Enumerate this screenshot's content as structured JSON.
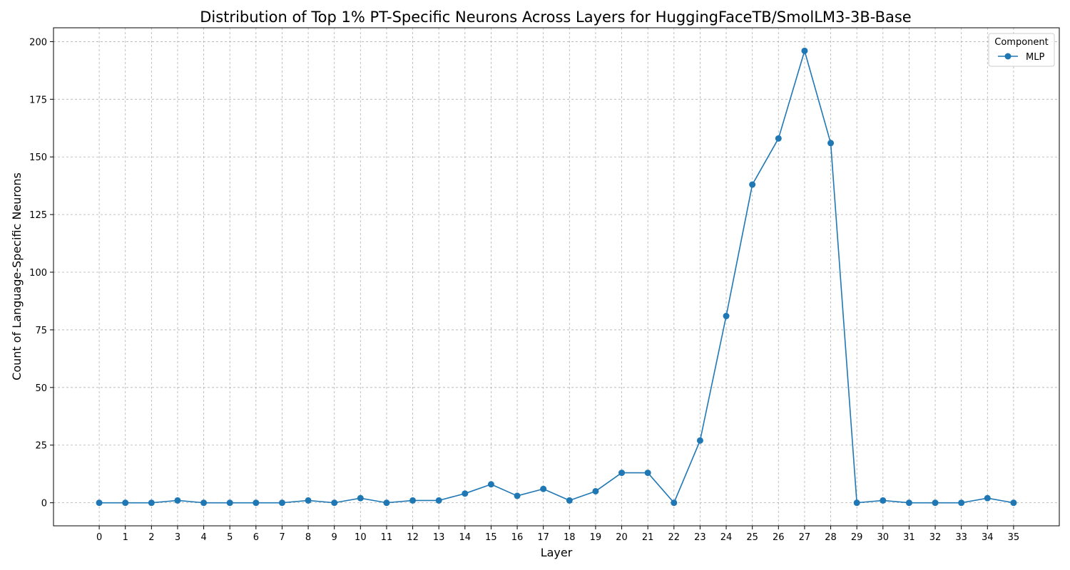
{
  "chart_data": {
    "type": "line",
    "title": "Distribution of Top 1% PT-Specific Neurons Across Layers for HuggingFaceTB/SmolLM3-3B-Base",
    "xlabel": "Layer",
    "ylabel": "Count of Language-Specific Neurons",
    "x": [
      0,
      1,
      2,
      3,
      4,
      5,
      6,
      7,
      8,
      9,
      10,
      11,
      12,
      13,
      14,
      15,
      16,
      17,
      18,
      19,
      20,
      21,
      22,
      23,
      24,
      25,
      26,
      27,
      28,
      29,
      30,
      31,
      32,
      33,
      34,
      35
    ],
    "xticks": [
      "0",
      "1",
      "2",
      "3",
      "4",
      "5",
      "6",
      "7",
      "8",
      "9",
      "10",
      "11",
      "12",
      "13",
      "14",
      "15",
      "16",
      "17",
      "18",
      "19",
      "20",
      "21",
      "22",
      "23",
      "24",
      "25",
      "26",
      "27",
      "28",
      "29",
      "30",
      "31",
      "32",
      "33",
      "34",
      "35"
    ],
    "xlim": [
      -1.75,
      36.75
    ],
    "ylim": [
      -10,
      206
    ],
    "yticks": [
      0,
      25,
      50,
      75,
      100,
      125,
      150,
      175,
      200
    ],
    "ytick_labels": [
      "0",
      "25",
      "50",
      "75",
      "100",
      "125",
      "150",
      "175",
      "200"
    ],
    "grid": true,
    "legend": {
      "title": "Component",
      "placement": "top-right"
    },
    "series": [
      {
        "name": "MLP",
        "color": "#1f77b4",
        "marker": "circle",
        "values": [
          0,
          0,
          0,
          1,
          0,
          0,
          0,
          0,
          1,
          0,
          2,
          0,
          1,
          1,
          4,
          8,
          3,
          6,
          1,
          5,
          13,
          13,
          0,
          27,
          81,
          138,
          158,
          196,
          156,
          0,
          1,
          0,
          0,
          0,
          2,
          0
        ]
      }
    ]
  }
}
